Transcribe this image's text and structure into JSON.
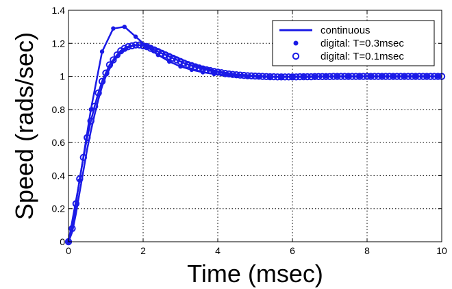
{
  "chart_data": {
    "type": "line",
    "title": "",
    "xlabel": "Time (msec)",
    "ylabel": "Speed (rads/sec)",
    "xlim": [
      0,
      10
    ],
    "ylim": [
      0,
      1.4
    ],
    "xticks": [
      0,
      2,
      4,
      6,
      8,
      10
    ],
    "xtick_labels": [
      "0",
      "2",
      "4",
      "6",
      "8",
      "10"
    ],
    "yticks": [
      0,
      0.2,
      0.4,
      0.6,
      0.8,
      1,
      1.2,
      1.4
    ],
    "ytick_labels": [
      "0",
      "0.2",
      "0.4",
      "0.6",
      "0.8",
      "1",
      "1.2",
      "1.4"
    ],
    "grid": true,
    "legend_position": "top-right",
    "line_color": "#1a1ae6",
    "series": [
      {
        "name": "continuous",
        "style": "line",
        "x": [
          0,
          0.1,
          0.2,
          0.3,
          0.4,
          0.5,
          0.6,
          0.7,
          0.8,
          0.9,
          1.0,
          1.2,
          1.4,
          1.6,
          1.8,
          2.0,
          2.2,
          2.4,
          2.6,
          2.8,
          3.0,
          3.5,
          4.0,
          4.5,
          5.0,
          5.5,
          6.0,
          7.0,
          8.0,
          9.0,
          10.0
        ],
        "y": [
          0,
          0.06,
          0.17,
          0.3,
          0.43,
          0.56,
          0.67,
          0.77,
          0.86,
          0.94,
          1.0,
          1.09,
          1.145,
          1.175,
          1.19,
          1.19,
          1.18,
          1.165,
          1.145,
          1.125,
          1.105,
          1.06,
          1.03,
          1.012,
          1.003,
          0.998,
          0.997,
          0.999,
          1.0,
          1.0,
          1.0
        ]
      },
      {
        "name": "digital: T=0.3msec",
        "style": "line-dot",
        "x": [
          0,
          0.3,
          0.6,
          0.9,
          1.2,
          1.5,
          1.8,
          2.1,
          2.4,
          2.7,
          3.0,
          3.3,
          3.6,
          3.9,
          4.2,
          4.5,
          4.8,
          5.1,
          5.4,
          5.7,
          6.0,
          6.3,
          6.6,
          6.9,
          7.2,
          7.5,
          7.8,
          8.1,
          8.4,
          8.7,
          9.0,
          9.3,
          9.6,
          9.9
        ],
        "y": [
          0,
          0.37,
          0.8,
          1.15,
          1.29,
          1.3,
          1.24,
          1.18,
          1.13,
          1.09,
          1.06,
          1.04,
          1.025,
          1.015,
          1.008,
          1.003,
          1.0,
          0.998,
          0.997,
          0.997,
          0.998,
          0.999,
          0.999,
          1.0,
          1.0,
          1.0,
          1.0,
          1.0,
          1.0,
          1.0,
          1.0,
          1.0,
          1.0,
          1.0
        ]
      },
      {
        "name": "digital: T=0.1msec",
        "style": "line-circle",
        "x": [
          0,
          0.1,
          0.2,
          0.3,
          0.4,
          0.5,
          0.6,
          0.7,
          0.8,
          0.9,
          1.0,
          1.1,
          1.2,
          1.3,
          1.4,
          1.5,
          1.6,
          1.7,
          1.8,
          1.9,
          2.0,
          2.1,
          2.2,
          2.3,
          2.4,
          2.5,
          2.6,
          2.7,
          2.8,
          2.9,
          3.0,
          3.1,
          3.2,
          3.3,
          3.4,
          3.5,
          3.6,
          3.7,
          3.8,
          3.9,
          4.0,
          4.1,
          4.2,
          4.3,
          4.4,
          4.5,
          4.6,
          4.7,
          4.8,
          4.9,
          5.0,
          5.1,
          5.2,
          5.3,
          5.4,
          5.5,
          5.6,
          5.7,
          5.8,
          5.9,
          6.0,
          6.1,
          6.2,
          6.3,
          6.4,
          6.5,
          6.6,
          6.7,
          6.8,
          6.9,
          7.0,
          7.1,
          7.2,
          7.3,
          7.4,
          7.5,
          7.6,
          7.7,
          7.8,
          7.9,
          8.0,
          8.1,
          8.2,
          8.3,
          8.4,
          8.5,
          8.6,
          8.7,
          8.8,
          8.9,
          9.0,
          9.1,
          9.2,
          9.3,
          9.4,
          9.5,
          9.6,
          9.7,
          9.8,
          9.9,
          10.0
        ],
        "y": [
          0,
          0.08,
          0.23,
          0.38,
          0.51,
          0.63,
          0.73,
          0.82,
          0.9,
          0.97,
          1.02,
          1.07,
          1.1,
          1.13,
          1.155,
          1.17,
          1.18,
          1.185,
          1.19,
          1.19,
          1.185,
          1.18,
          1.17,
          1.16,
          1.15,
          1.14,
          1.13,
          1.12,
          1.11,
          1.1,
          1.09,
          1.08,
          1.072,
          1.065,
          1.058,
          1.051,
          1.045,
          1.04,
          1.035,
          1.03,
          1.026,
          1.022,
          1.018,
          1.015,
          1.012,
          1.01,
          1.008,
          1.006,
          1.004,
          1.003,
          1.002,
          1.001,
          1.0,
          0.999,
          0.998,
          0.998,
          0.997,
          0.997,
          0.997,
          0.997,
          0.997,
          0.997,
          0.998,
          0.998,
          0.998,
          0.998,
          0.999,
          0.999,
          0.999,
          0.999,
          0.999,
          1.0,
          1.0,
          1.0,
          1.0,
          1.0,
          1.0,
          1.0,
          1.0,
          1.0,
          1.0,
          1.0,
          1.0,
          1.0,
          1.0,
          1.0,
          1.0,
          1.0,
          1.0,
          1.0,
          1.0,
          1.0,
          1.0,
          1.0,
          1.0,
          1.0,
          1.0,
          1.0,
          1.0,
          1.0,
          1.0
        ]
      }
    ]
  }
}
